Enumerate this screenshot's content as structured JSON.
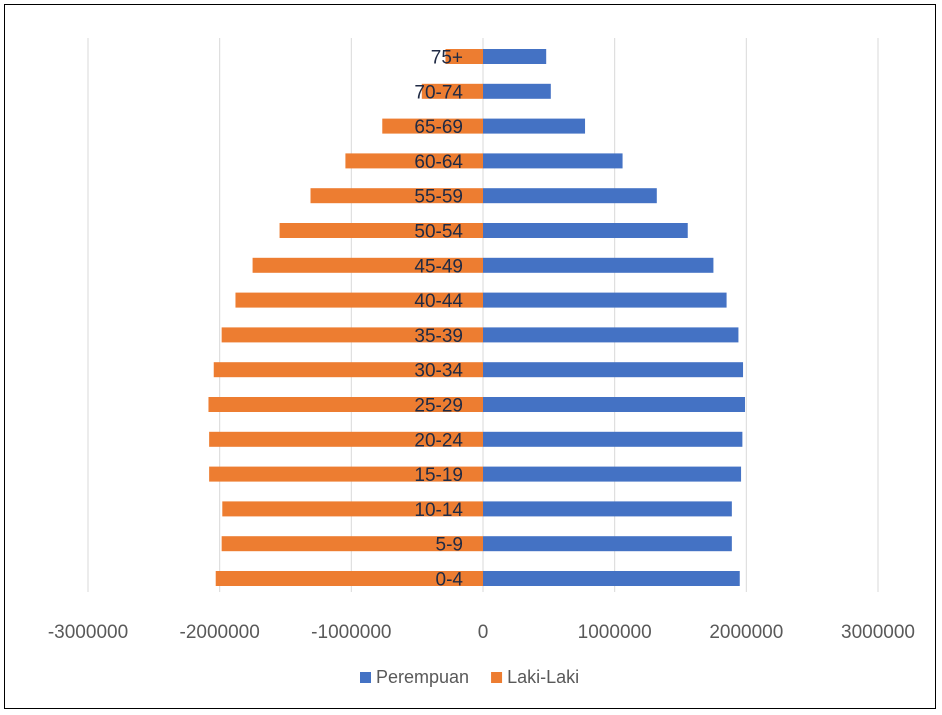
{
  "chart_data": {
    "type": "bar",
    "orientation": "horizontal",
    "categories": [
      "0-4",
      "5-9",
      "10-14",
      "15-19",
      "20-24",
      "25-29",
      "30-34",
      "35-39",
      "40-44",
      "45-49",
      "50-54",
      "55-59",
      "60-64",
      "65-69",
      "70-74",
      "75+"
    ],
    "series": [
      {
        "name": "Perempuan",
        "color": "#4472C4",
        "values": [
          1950000,
          1890000,
          1890000,
          1960000,
          1970000,
          1990000,
          1975000,
          1940000,
          1850000,
          1750000,
          1555000,
          1320000,
          1060000,
          775000,
          515000,
          480000
        ]
      },
      {
        "name": "Laki-Laki",
        "color": "#ED7D31",
        "values": [
          -2030000,
          -1985000,
          -1980000,
          -2080000,
          -2080000,
          -2085000,
          -2045000,
          -1985000,
          -1880000,
          -1750000,
          -1545000,
          -1310000,
          -1045000,
          -765000,
          -465000,
          -285000
        ]
      }
    ],
    "xlim": [
      -3000000,
      3000000
    ],
    "xticks": [
      "-3000000",
      "-2000000",
      "-1000000",
      "0",
      "1000000",
      "2000000",
      "3000000"
    ],
    "grid": true,
    "legend_position": "bottom"
  }
}
